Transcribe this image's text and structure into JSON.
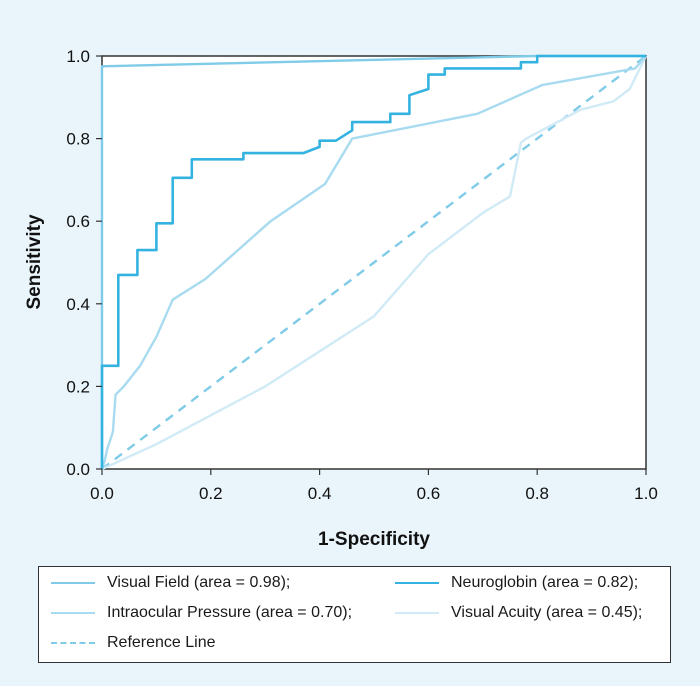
{
  "chart_data": {
    "type": "line",
    "xlabel": "1-Specificity",
    "ylabel": "Sensitivity",
    "xlim": [
      0,
      1
    ],
    "ylim": [
      0,
      1
    ],
    "x_ticks": [
      "0.0",
      "0.2",
      "0.4",
      "0.6",
      "0.8",
      "1.0"
    ],
    "y_ticks": [
      "0.0",
      "0.2",
      "0.4",
      "0.6",
      "0.8",
      "1.0"
    ],
    "grid": false,
    "legend_position": "bottom",
    "series": [
      {
        "name": "Visual Field (area = 0.98);",
        "color": "#7fcbe8",
        "dashed": false,
        "points": [
          [
            0,
            0
          ],
          [
            0,
            0.975
          ],
          [
            0.8,
            1.0
          ],
          [
            1.0,
            1.0
          ]
        ]
      },
      {
        "name": "Neuroglobin (area = 0.82);",
        "color": "#35b3e0",
        "dashed": false,
        "step": true,
        "points": [
          [
            0,
            0
          ],
          [
            0,
            0.25
          ],
          [
            0.03,
            0.25
          ],
          [
            0.03,
            0.47
          ],
          [
            0.065,
            0.47
          ],
          [
            0.065,
            0.53
          ],
          [
            0.1,
            0.53
          ],
          [
            0.1,
            0.595
          ],
          [
            0.13,
            0.595
          ],
          [
            0.13,
            0.705
          ],
          [
            0.165,
            0.705
          ],
          [
            0.165,
            0.75
          ],
          [
            0.26,
            0.75
          ],
          [
            0.26,
            0.765
          ],
          [
            0.37,
            0.765
          ],
          [
            0.4,
            0.78
          ],
          [
            0.4,
            0.795
          ],
          [
            0.43,
            0.795
          ],
          [
            0.46,
            0.82
          ],
          [
            0.46,
            0.84
          ],
          [
            0.53,
            0.84
          ],
          [
            0.53,
            0.86
          ],
          [
            0.565,
            0.86
          ],
          [
            0.565,
            0.905
          ],
          [
            0.6,
            0.92
          ],
          [
            0.6,
            0.955
          ],
          [
            0.63,
            0.955
          ],
          [
            0.63,
            0.97
          ],
          [
            0.77,
            0.97
          ],
          [
            0.77,
            0.985
          ],
          [
            0.8,
            0.985
          ],
          [
            0.8,
            1.0
          ],
          [
            1.0,
            1.0
          ]
        ]
      },
      {
        "name": "Intraocular Pressure (area = 0.70);",
        "color": "#a8dbf0",
        "dashed": false,
        "points": [
          [
            0,
            0
          ],
          [
            0.005,
            0.02
          ],
          [
            0.01,
            0.05
          ],
          [
            0.015,
            0.07
          ],
          [
            0.02,
            0.09
          ],
          [
            0.025,
            0.18
          ],
          [
            0.04,
            0.2
          ],
          [
            0.07,
            0.25
          ],
          [
            0.1,
            0.32
          ],
          [
            0.13,
            0.41
          ],
          [
            0.19,
            0.46
          ],
          [
            0.25,
            0.53
          ],
          [
            0.31,
            0.6
          ],
          [
            0.41,
            0.69
          ],
          [
            0.46,
            0.8
          ],
          [
            0.69,
            0.86
          ],
          [
            0.81,
            0.93
          ],
          [
            0.98,
            0.97
          ],
          [
            1.0,
            1.0
          ]
        ]
      },
      {
        "name": "Visual Acuity (area = 0.45);",
        "color": "#d0eaf6",
        "dashed": false,
        "points": [
          [
            0,
            0
          ],
          [
            0.1,
            0.06
          ],
          [
            0.3,
            0.2
          ],
          [
            0.5,
            0.37
          ],
          [
            0.6,
            0.52
          ],
          [
            0.7,
            0.62
          ],
          [
            0.75,
            0.66
          ],
          [
            0.77,
            0.79
          ],
          [
            0.78,
            0.8
          ],
          [
            0.88,
            0.87
          ],
          [
            0.91,
            0.88
          ],
          [
            0.94,
            0.89
          ],
          [
            0.97,
            0.92
          ],
          [
            1.0,
            1.0
          ]
        ]
      },
      {
        "name": "Reference Line",
        "color": "#7fcbe8",
        "dashed": true,
        "points": [
          [
            0,
            0
          ],
          [
            1.0,
            1.0
          ]
        ]
      }
    ]
  }
}
